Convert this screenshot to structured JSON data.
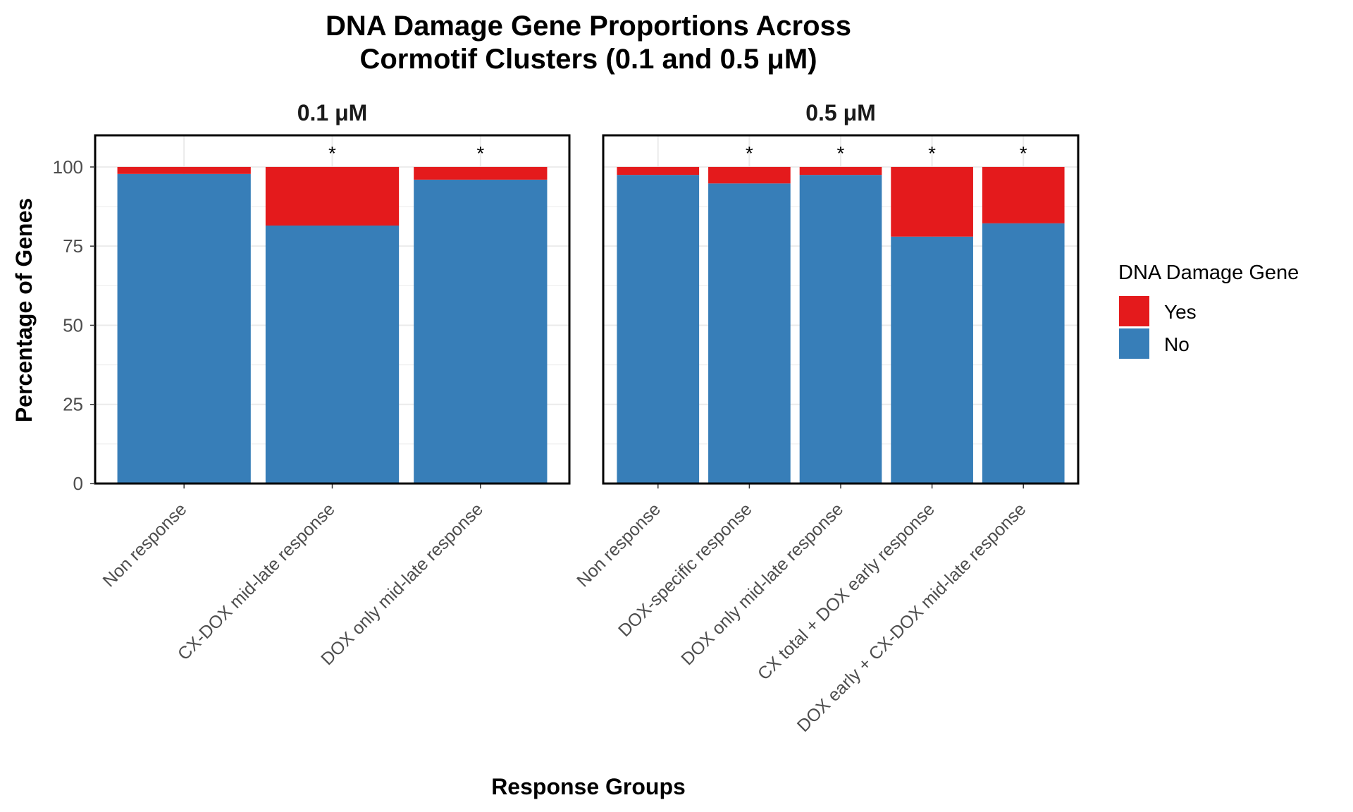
{
  "chart_data": {
    "type": "bar",
    "stacked": true,
    "title": "DNA Damage Gene Proportions Across",
    "title_line2": "Cormotif Clusters (0.1 and 0.5 μM)",
    "xlabel": "Response Groups",
    "ylabel": "Percentage of Genes",
    "ylim": [
      0,
      110
    ],
    "yticks": [
      "0",
      "25",
      "50",
      "75",
      "100"
    ],
    "grid": true,
    "legend": {
      "title": "DNA Damage Gene",
      "placement": "right",
      "entries": [
        {
          "label": "Yes",
          "color": "#E41A1C"
        },
        {
          "label": "No",
          "color": "#377EB8"
        }
      ]
    },
    "panels": [
      {
        "label": "0.1 μM",
        "categories": [
          "Non response",
          "CX-DOX mid-late response",
          "DOX only mid-late response"
        ],
        "series": [
          {
            "name": "No",
            "values": [
              97.8,
              81.5,
              96.0
            ]
          },
          {
            "name": "Yes",
            "values": [
              2.2,
              18.5,
              4.0
            ]
          }
        ],
        "significance": [
          "",
          "*",
          "*"
        ]
      },
      {
        "label": "0.5 μM",
        "categories": [
          "Non response",
          "DOX-specific response",
          "DOX only mid-late response",
          "CX total + DOX early response",
          "DOX early + CX-DOX mid-late response"
        ],
        "series": [
          {
            "name": "No",
            "values": [
              97.5,
              94.8,
              97.5,
              78.0,
              82.2
            ]
          },
          {
            "name": "Yes",
            "values": [
              2.5,
              5.2,
              2.5,
              22.0,
              17.8
            ]
          }
        ],
        "significance": [
          "",
          "*",
          "*",
          "*",
          "*"
        ]
      }
    ]
  }
}
